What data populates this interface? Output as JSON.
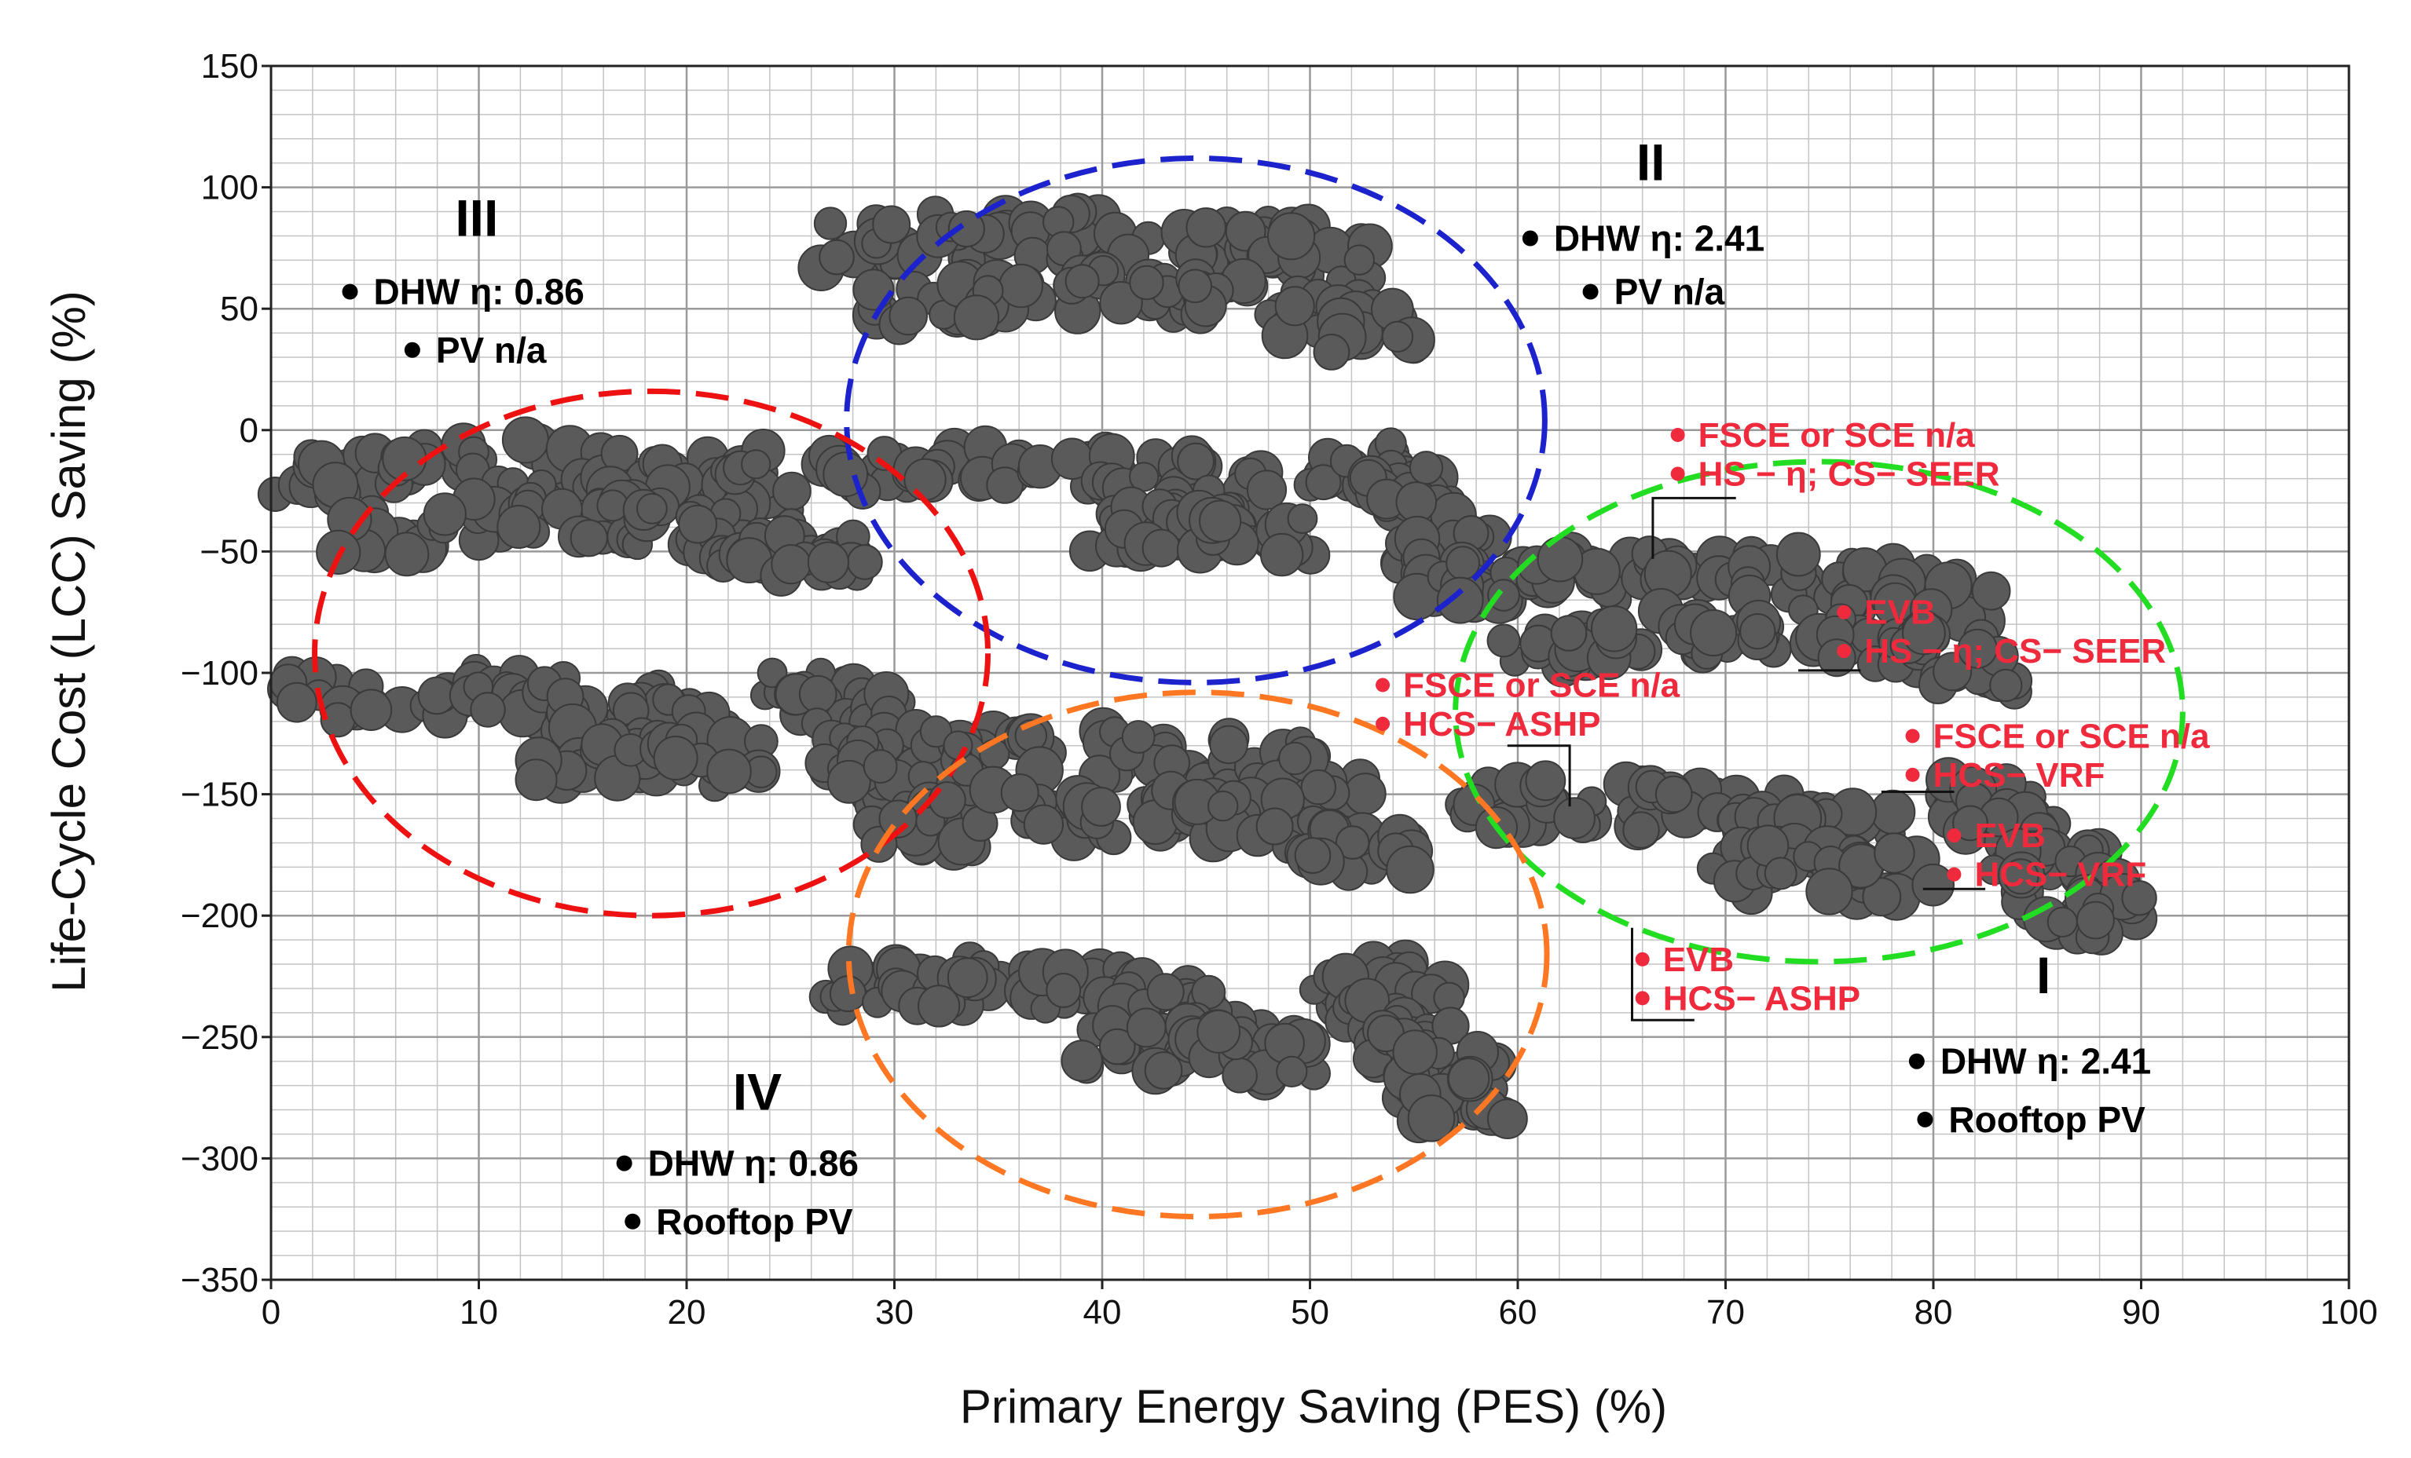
{
  "chart_data": {
    "type": "scatter",
    "title": "",
    "xlabel": "Primary Energy Saving (PES) (%)",
    "ylabel": "Life-Cycle Cost (LCC) Saving  (%)",
    "xlim": [
      0,
      100
    ],
    "ylim": [
      -350,
      150
    ],
    "x_ticks": [
      0,
      10,
      20,
      30,
      40,
      50,
      60,
      70,
      80,
      90,
      100
    ],
    "y_ticks": [
      150,
      100,
      50,
      0,
      -50,
      -100,
      -150,
      -200,
      -250,
      -300,
      -350
    ],
    "x_tick_labels": [
      "0",
      "10",
      "20",
      "30",
      "40",
      "50",
      "60",
      "70",
      "80",
      "90",
      "100"
    ],
    "y_tick_labels": [
      "150",
      "100",
      "50",
      "0",
      "−50",
      "−100",
      "−150",
      "−200",
      "−250",
      "−300",
      "−350"
    ],
    "grid": true,
    "grid_minor": true,
    "clusters": [
      {
        "label": "I",
        "color": "#22dd22",
        "ellipse": {
          "cx": 74.5,
          "cy": -116,
          "rx": 17.5,
          "ry": 103
        },
        "annotations": [
          {
            "text": "DHW η: 2.41",
            "x": 79.2,
            "y": -260
          },
          {
            "text": "Rooftop PV",
            "x": 79.6,
            "y": -284
          }
        ],
        "label_pos": {
          "x": 85.3,
          "y": -232
        }
      },
      {
        "label": "II",
        "color": "#1c22cc",
        "ellipse": {
          "cx": 44.5,
          "cy": 4,
          "rx": 16.8,
          "ry": 108
        },
        "annotations": [
          {
            "text": "DHW η: 2.41",
            "x": 60.6,
            "y": 79
          },
          {
            "text": "PV n/a",
            "x": 63.5,
            "y": 57
          }
        ],
        "label_pos": {
          "x": 66.4,
          "y": 103
        }
      },
      {
        "label": "III",
        "color": "#ee1111",
        "ellipse": {
          "cx": 18.3,
          "cy": -92,
          "rx": 16.2,
          "ry": 108
        },
        "annotations": [
          {
            "text": "DHW η: 0.86",
            "x": 3.8,
            "y": 57
          },
          {
            "text": "PV n/a",
            "x": 6.8,
            "y": 33
          }
        ],
        "label_pos": {
          "x": 9.9,
          "y": 80
        }
      },
      {
        "label": "IV",
        "color": "#ff7722",
        "ellipse": {
          "cx": 44.6,
          "cy": -216,
          "rx": 16.8,
          "ry": 108
        },
        "annotations": [
          {
            "text": "DHW η: 0.86",
            "x": 17.0,
            "y": -302
          },
          {
            "text": "Rooftop PV",
            "x": 17.4,
            "y": -326
          }
        ],
        "label_pos": {
          "x": 23.4,
          "y": -280
        }
      }
    ],
    "red_annotations": [
      {
        "text": "FSCE or SCE n/a",
        "x": 67.7,
        "y": -2
      },
      {
        "text": "HS − η; CS− SEER",
        "x": 67.7,
        "y": -18
      },
      {
        "text": "EVB",
        "x": 75.7,
        "y": -75
      },
      {
        "text": "HS − η; CS− SEER",
        "x": 75.7,
        "y": -91
      },
      {
        "text": "FSCE or SCE n/a",
        "x": 53.5,
        "y": -105
      },
      {
        "text": "HCS− ASHP",
        "x": 53.5,
        "y": -121
      },
      {
        "text": "FSCE or SCE n/a",
        "x": 79.0,
        "y": -126
      },
      {
        "text": "HCS− VRF",
        "x": 79.0,
        "y": -142
      },
      {
        "text": "EVB",
        "x": 81.0,
        "y": -167
      },
      {
        "text": "HCS− VRF",
        "x": 81.0,
        "y": -183
      },
      {
        "text": "EVB",
        "x": 66.0,
        "y": -218
      },
      {
        "text": "HCS− ASHP",
        "x": 66.0,
        "y": -234
      }
    ]
  }
}
